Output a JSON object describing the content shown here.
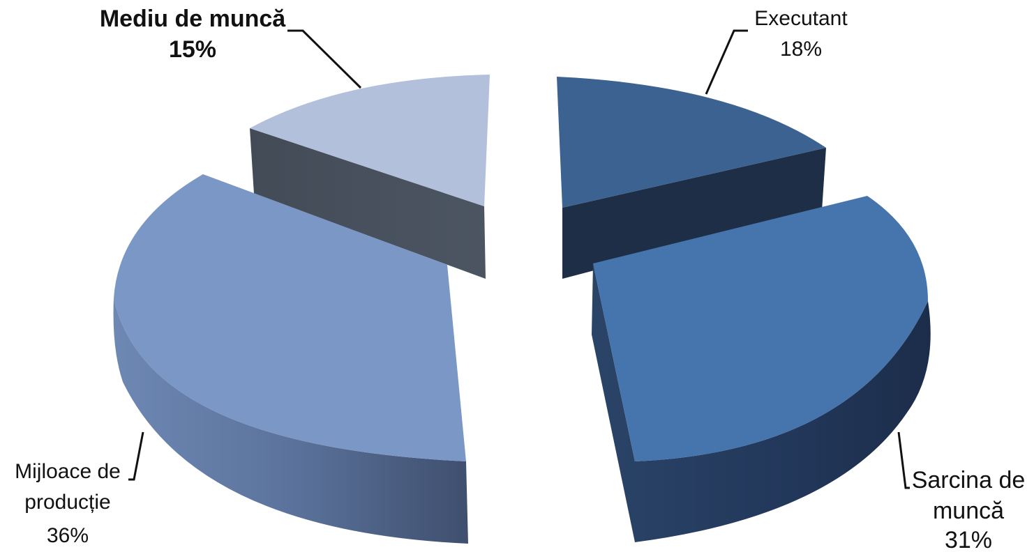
{
  "chart_data": {
    "type": "pie",
    "style": "3d-exploded",
    "slices": [
      {
        "name": "Executant",
        "value": 18,
        "label_value": "18%",
        "color": "#3B6291",
        "bold": false
      },
      {
        "name": "Sarcina de muncă",
        "value": 31,
        "label_value": "31%",
        "color": "#4675AE",
        "bold": false
      },
      {
        "name": "Mijloace de producție",
        "value": 36,
        "label_value": "36%",
        "color": "#7B97C5",
        "bold": false
      },
      {
        "name": "Mediu de muncă",
        "value": 15,
        "label_value": "15%",
        "color": "#B2C0DC",
        "bold": true
      }
    ],
    "colors": {
      "Executant": "#3B6291",
      "Sarcina de muncă": "#4675AE",
      "Mijloace de producție": "#7B97C5",
      "Mediu de muncă": "#B2C0DC"
    }
  }
}
